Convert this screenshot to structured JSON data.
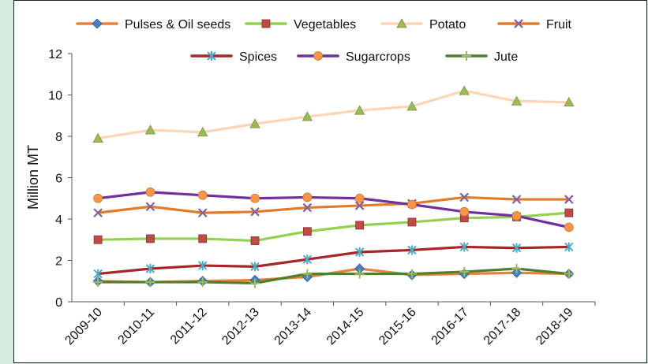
{
  "chart_data": {
    "type": "line",
    "title": "",
    "xlabel": "",
    "ylabel": "Million MT",
    "ylim": [
      0,
      12
    ],
    "yticks": [
      0,
      2,
      4,
      6,
      8,
      10,
      12
    ],
    "grid": false,
    "legend_position": "top",
    "categories": [
      "2009-10",
      "2010-11",
      "2011-12",
      "2012-13",
      "2013-14",
      "2014-15",
      "2015-16",
      "2016-17",
      "2017-18",
      "2018-19"
    ],
    "series": [
      {
        "name": "Pulses & Oil seeds",
        "color": "#e8823a",
        "marker": "diamond",
        "marker_color": "#4a7fc1",
        "values": [
          1.0,
          0.95,
          1.0,
          1.05,
          1.2,
          1.6,
          1.3,
          1.35,
          1.4,
          1.35
        ]
      },
      {
        "name": "Vegetables",
        "color": "#92d050",
        "marker": "square",
        "marker_color": "#be4b48",
        "values": [
          3.0,
          3.05,
          3.05,
          2.95,
          3.4,
          3.7,
          3.85,
          4.05,
          4.1,
          4.3
        ]
      },
      {
        "name": "Potato",
        "color": "#fbd5b5",
        "marker": "triangle",
        "marker_color": "#9bbb59",
        "values": [
          7.9,
          8.3,
          8.2,
          8.6,
          8.95,
          9.25,
          9.45,
          10.2,
          9.7,
          9.65
        ]
      },
      {
        "name": "Fruit",
        "color": "#e07b2c",
        "marker": "x",
        "marker_color": "#7f5fa0",
        "values": [
          4.3,
          4.6,
          4.3,
          4.35,
          4.55,
          4.65,
          4.75,
          5.05,
          4.95,
          4.95
        ]
      },
      {
        "name": "Spices",
        "color": "#a6262a",
        "marker": "star",
        "marker_color": "#4bacc6",
        "values": [
          1.35,
          1.6,
          1.75,
          1.7,
          2.05,
          2.4,
          2.5,
          2.65,
          2.6,
          2.65
        ]
      },
      {
        "name": "Sugarcrops",
        "color": "#7030a0",
        "marker": "circle",
        "marker_color": "#f79646",
        "values": [
          5.0,
          5.3,
          5.15,
          5.0,
          5.05,
          5.0,
          4.7,
          4.35,
          4.15,
          3.6
        ]
      },
      {
        "name": "Jute",
        "color": "#4f7f2e",
        "marker": "plus",
        "marker_color": "#9bbb59",
        "values": [
          0.95,
          0.95,
          0.95,
          0.9,
          1.35,
          1.35,
          1.35,
          1.45,
          1.6,
          1.35
        ]
      }
    ]
  }
}
